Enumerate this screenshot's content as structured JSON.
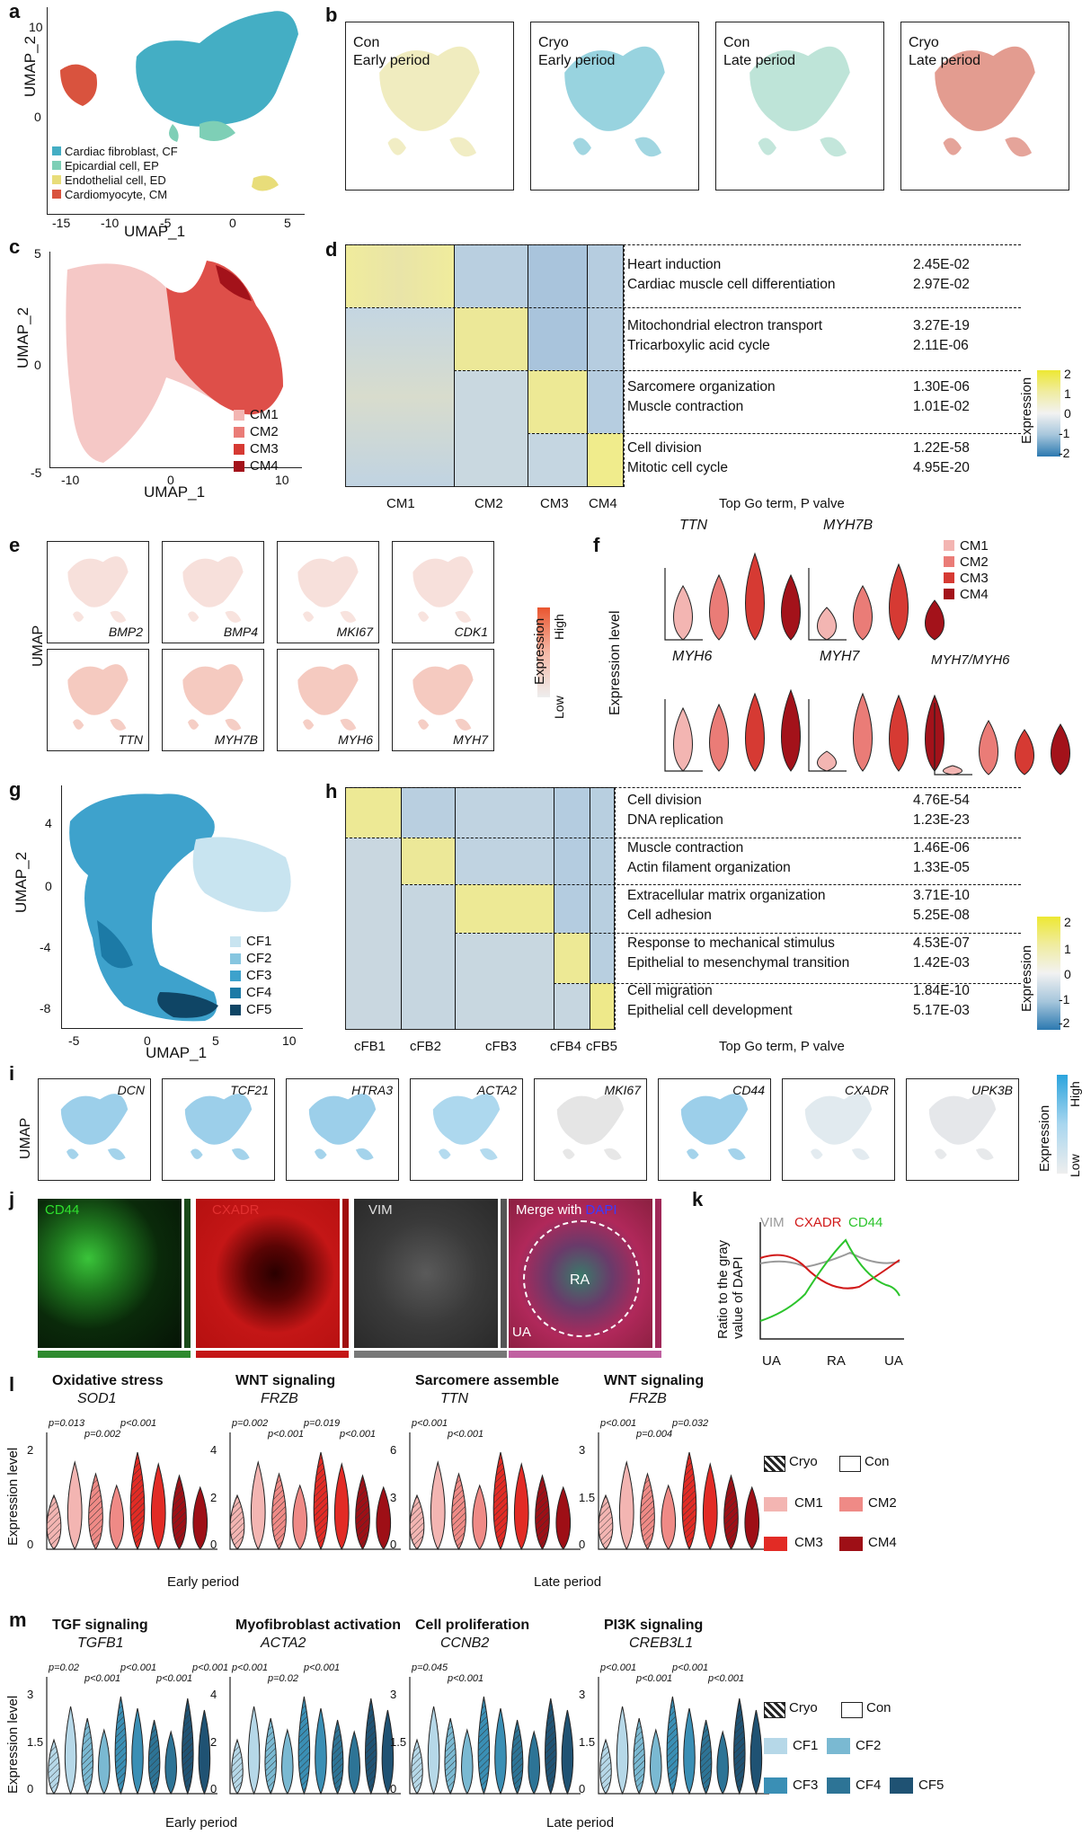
{
  "panel_labels": {
    "a": "a",
    "b": "b",
    "c": "c",
    "d": "d",
    "e": "e",
    "f": "f",
    "g": "g",
    "h": "h",
    "i": "i",
    "j": "j",
    "k": "k",
    "l": "l",
    "m": "m"
  },
  "a": {
    "xlabel": "UMAP_1",
    "ylabel": "UMAP_2",
    "xticks": [
      "-15",
      "-10",
      "-5",
      "0",
      "5"
    ],
    "yticks": [
      "10",
      "0"
    ],
    "legend": [
      {
        "label": "Cardiac fibroblast, CF",
        "color": "#44aec4"
      },
      {
        "label": "Epicardial cell, EP",
        "color": "#7ecfb6"
      },
      {
        "label": "Endothelial cell, ED",
        "color": "#e8dd7a"
      },
      {
        "label": "Cardiomyocyte, CM",
        "color": "#d9533e"
      }
    ]
  },
  "b": {
    "panels": [
      {
        "line1": "Con",
        "line2": "Early period",
        "color": "#e4dc8a"
      },
      {
        "line1": "Cryo",
        "line2": "Early period",
        "color": "#44aec4"
      },
      {
        "line1": "Con",
        "line2": "Late period",
        "color": "#88cdb8"
      },
      {
        "line1": "Cryo",
        "line2": "Late period",
        "color": "#cc4a35"
      }
    ]
  },
  "c": {
    "xlabel": "UMAP_1",
    "ylabel": "UMAP_2",
    "xticks": [
      "-10",
      "0",
      "10"
    ],
    "yticks": [
      "5",
      "0",
      "-5"
    ],
    "legend": [
      {
        "label": "CM1",
        "color": "#f3b5b2"
      },
      {
        "label": "CM2",
        "color": "#ea7c77"
      },
      {
        "label": "CM3",
        "color": "#d63a33"
      },
      {
        "label": "CM4",
        "color": "#a3121a"
      }
    ]
  },
  "d": {
    "columns": [
      "CM1",
      "CM2",
      "CM3",
      "CM4"
    ],
    "footer": "Top Go term, P valve",
    "terms": [
      [
        "Heart induction",
        "2.45E-02"
      ],
      [
        "Cardiac muscle cell differentiation",
        "2.97E-02"
      ],
      [
        "Mitochondrial electron transport",
        "3.27E-19"
      ],
      [
        "Tricarboxylic acid cycle",
        "2.11E-06"
      ],
      [
        "Sarcomere organization",
        "1.30E-06"
      ],
      [
        "Muscle contraction",
        "1.01E-02"
      ],
      [
        "Cell division",
        "1.22E-58"
      ],
      [
        "Mitotic cell cycle",
        "4.95E-20"
      ]
    ],
    "scale_label": "Expression",
    "scale_ticks": [
      "2",
      "1",
      "0",
      "-1",
      "-2"
    ]
  },
  "e": {
    "ylabel": "UMAP",
    "genes": [
      "BMP2",
      "BMP4",
      "MKI67",
      "CDK1",
      "TTN",
      "MYH7B",
      "MYH6",
      "MYH7"
    ],
    "scale_title": "Expression",
    "scale_high": "High",
    "scale_low": "Low"
  },
  "f": {
    "ylabel": "Expression level",
    "titles": [
      "TTN",
      "MYH7B",
      "MYH6",
      "MYH7",
      "MYH7/MYH6"
    ],
    "legend": [
      {
        "label": "CM1",
        "color": "#f3b5b2"
      },
      {
        "label": "CM2",
        "color": "#ea7c77"
      },
      {
        "label": "CM3",
        "color": "#d63a33"
      },
      {
        "label": "CM4",
        "color": "#a3121a"
      }
    ]
  },
  "g": {
    "xlabel": "UMAP_1",
    "ylabel": "UMAP_2",
    "xticks": [
      "-5",
      "0",
      "5",
      "10"
    ],
    "yticks": [
      "4",
      "0",
      "-4",
      "-8"
    ],
    "legend": [
      {
        "label": "CF1",
        "color": "#c8e4f0"
      },
      {
        "label": "CF2",
        "color": "#86c6e0"
      },
      {
        "label": "CF3",
        "color": "#3ea2cc"
      },
      {
        "label": "CF4",
        "color": "#1c7aa6"
      },
      {
        "label": "CF5",
        "color": "#0f4565"
      }
    ]
  },
  "h": {
    "columns": [
      "cFB1",
      "cFB2",
      "cFB3",
      "cFB4",
      "cFB5"
    ],
    "footer": "Top Go term, P valve",
    "terms": [
      [
        "Cell division",
        "4.76E-54"
      ],
      [
        "DNA replication",
        "1.23E-23"
      ],
      [
        "Muscle contraction",
        "1.46E-06"
      ],
      [
        "Actin filament organization",
        "1.33E-05"
      ],
      [
        "Extracellular matrix organization",
        "3.71E-10"
      ],
      [
        "Cell adhesion",
        "5.25E-08"
      ],
      [
        "Response to mechanical stimulus",
        "4.53E-07"
      ],
      [
        "Epithelial to mesenchymal transition",
        "1.42E-03"
      ],
      [
        "Cell migration",
        "1.84E-10"
      ],
      [
        "Epithelial cell development",
        "5.17E-03"
      ]
    ],
    "scale_label": "Expression",
    "scale_ticks": [
      "2",
      "1",
      "0",
      "-1",
      "-2"
    ]
  },
  "i": {
    "ylabel": "UMAP",
    "genes": [
      "DCN",
      "TCF21",
      "HTRA3",
      "ACTA2",
      "MKI67",
      "CD44",
      "CXADR",
      "UPK3B"
    ],
    "scale_title": "Expression",
    "scale_high": "High",
    "scale_low": "Low"
  },
  "j": {
    "labels": [
      "CD44",
      "CXADR",
      "VIM"
    ],
    "merge_label": "Merge with",
    "dapi_label": "DAPI",
    "ra": "RA",
    "ua": "UA"
  },
  "k": {
    "ylabel": "Ratio to the gray value of DAPI",
    "xticks": [
      "UA",
      "RA",
      "UA"
    ],
    "arrows": [
      {
        "label": "VIM",
        "color": "#999999"
      },
      {
        "label": "CXADR",
        "color": "#d11a1a"
      },
      {
        "label": "CD44",
        "color": "#2cc42c"
      }
    ]
  },
  "l": {
    "groups": [
      {
        "title": "Oxidative stress",
        "gene": "SOD1",
        "yticks": [
          "2",
          "0"
        ],
        "pvals": [
          "p=0.013",
          "p=0.002",
          "p<0.001"
        ]
      },
      {
        "title": "WNT signaling",
        "gene": "FRZB",
        "yticks": [
          "4",
          "2",
          "0"
        ],
        "pvals": [
          "p=0.002",
          "p<0.001",
          "p=0.019",
          "p<0.001"
        ]
      },
      {
        "title": "Sarcomere assemble",
        "gene": "TTN",
        "yticks": [
          "6",
          "3",
          "0"
        ],
        "pvals": [
          "p<0.001",
          "p<0.001"
        ]
      },
      {
        "title": "WNT signaling",
        "gene": "FRZB",
        "yticks": [
          "3",
          "1.5",
          "0"
        ],
        "pvals": [
          "p<0.001",
          "p=0.004",
          "p=0.032"
        ]
      }
    ],
    "ylabel": "Expression level",
    "early": "Early period",
    "late": "Late period",
    "legend": {
      "cryo": "Cryo",
      "con": "Con",
      "items": [
        {
          "label": "CM1",
          "color": "#f3b5b2"
        },
        {
          "label": "CM2",
          "color": "#ef8a86"
        },
        {
          "label": "CM3",
          "color": "#e22b25"
        },
        {
          "label": "CM4",
          "color": "#9e0f16"
        }
      ]
    }
  },
  "m": {
    "groups": [
      {
        "title": "TGF signaling",
        "gene": "TGFB1",
        "yticks": [
          "3",
          "1.5",
          "0"
        ],
        "pvals": [
          "p=0.02",
          "p<0.001",
          "p<0.001",
          "p<0.001",
          "p<0.001"
        ]
      },
      {
        "title": "Myofibroblast activation",
        "gene": "ACTA2",
        "yticks": [
          "4",
          "2",
          "0"
        ],
        "pvals": [
          "p<0.001",
          "p=0.02",
          "p<0.001"
        ]
      },
      {
        "title": "Cell proliferation",
        "gene": "CCNB2",
        "yticks": [
          "3",
          "1.5",
          "0"
        ],
        "pvals": [
          "p=0.045",
          "p<0.001"
        ]
      },
      {
        "title": "PI3K signaling",
        "gene": "CREB3L1",
        "yticks": [
          "3",
          "1.5",
          "0"
        ],
        "pvals": [
          "p<0.001",
          "p<0.001",
          "p<0.001",
          "p<0.001"
        ]
      }
    ],
    "ylabel": "Expression level",
    "early": "Early period",
    "late": "Late period",
    "legend": {
      "cryo": "Cryo",
      "con": "Con",
      "items": [
        {
          "label": "CF1",
          "color": "#b6d8e8"
        },
        {
          "label": "CF2",
          "color": "#7ab9d2"
        },
        {
          "label": "CF3",
          "color": "#3a8fb5"
        },
        {
          "label": "CF4",
          "color": "#2d7496"
        },
        {
          "label": "CF5",
          "color": "#1f5273"
        }
      ]
    }
  }
}
